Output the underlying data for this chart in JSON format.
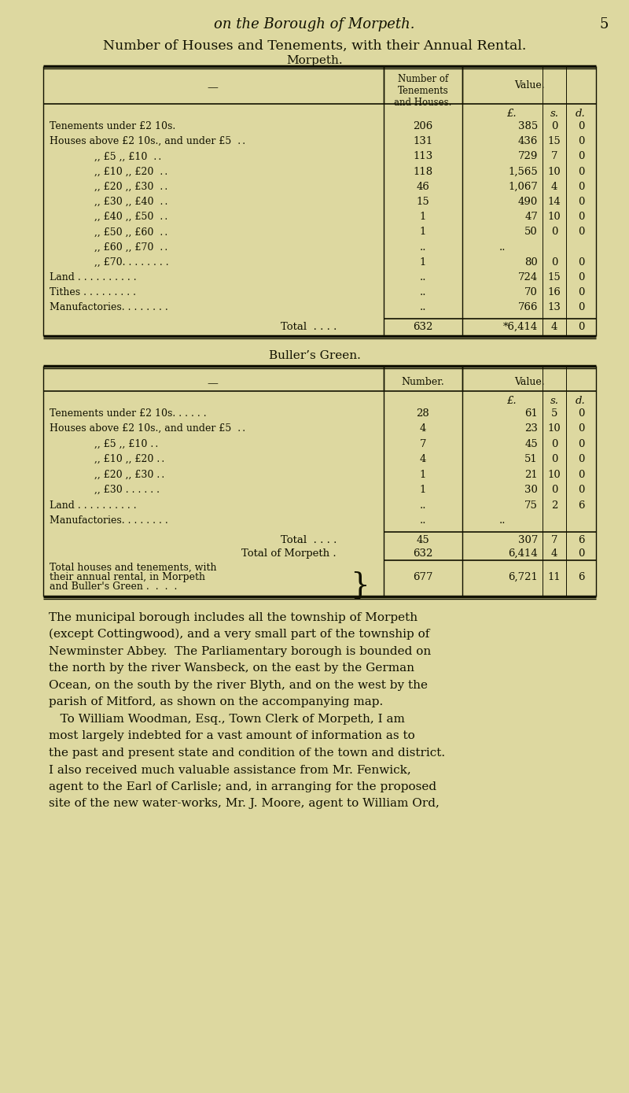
{
  "bg_color": "#ddd8a0",
  "page_title_italic": "on the Borough of Morpeth.",
  "page_number": "5",
  "main_title": "Number of Houses and Tenements, with their Annual Rental.",
  "morpeth_subtitle": "Morpeth.",
  "morpeth_col_header1": "Number of\nTenements\nand Houses.",
  "morpeth_col_header2": "Value.",
  "morpeth_rows": [
    {
      "label": "Tenements under £2 10s.",
      "indent": false,
      "number": "206",
      "pounds": "385",
      "shillings": "0",
      "pence": "0"
    },
    {
      "label": "Houses above £2 10s., and under £5  . .",
      "indent": false,
      "number": "131",
      "pounds": "436",
      "shillings": "15",
      "pence": "0"
    },
    {
      "label": ",, £5 ,, £10  . .",
      "indent": true,
      "number": "113",
      "pounds": "729",
      "shillings": "7",
      "pence": "0"
    },
    {
      "label": ",, £10 ,, £20  . .",
      "indent": true,
      "number": "118",
      "pounds": "1,565",
      "shillings": "10",
      "pence": "0"
    },
    {
      "label": ",, £20 ,, £30  . .",
      "indent": true,
      "number": "46",
      "pounds": "1,067",
      "shillings": "4",
      "pence": "0"
    },
    {
      "label": ",, £30 ,, £40  . .",
      "indent": true,
      "number": "15",
      "pounds": "490",
      "shillings": "14",
      "pence": "0"
    },
    {
      "label": ",, £40 ,, £50  . .",
      "indent": true,
      "number": "1",
      "pounds": "47",
      "shillings": "10",
      "pence": "0"
    },
    {
      "label": ",, £50 ,, £60  . .",
      "indent": true,
      "number": "1",
      "pounds": "50",
      "shillings": "0",
      "pence": "0"
    },
    {
      "label": ",, £60 ,, £70  . .",
      "indent": true,
      "number": "..",
      "pounds": "..",
      "shillings": "",
      "pence": ""
    },
    {
      "label": ",, £70. . . . . . . .",
      "indent": true,
      "number": "1",
      "pounds": "80",
      "shillings": "0",
      "pence": "0"
    },
    {
      "label": "Land . . . . . . . . . .",
      "indent": false,
      "number": "..",
      "pounds": "724",
      "shillings": "15",
      "pence": "0"
    },
    {
      "label": "Tithes . . . . . . . . .",
      "indent": false,
      "number": "..",
      "pounds": "70",
      "shillings": "16",
      "pence": "0"
    },
    {
      "label": "Manufactories. . . . . . . .",
      "indent": false,
      "number": "..",
      "pounds": "766",
      "shillings": "13",
      "pence": "0"
    }
  ],
  "morpeth_total_number": "632",
  "morpeth_total_pounds": "*6,414",
  "morpeth_total_shillings": "4",
  "morpeth_total_pence": "0",
  "bullers_subtitle": "Buller’s Green.",
  "bullers_rows": [
    {
      "label": "Tenements under £2 10s. . . . . .",
      "indent": false,
      "number": "28",
      "pounds": "61",
      "shillings": "5",
      "pence": "0"
    },
    {
      "label": "Houses above £2 10s., and under £5  . .",
      "indent": false,
      "number": "4",
      "pounds": "23",
      "shillings": "10",
      "pence": "0"
    },
    {
      "label": ",, £5 ,, £10 . .",
      "indent": true,
      "number": "7",
      "pounds": "45",
      "shillings": "0",
      "pence": "0"
    },
    {
      "label": ",, £10 ,, £20 . .",
      "indent": true,
      "number": "4",
      "pounds": "51",
      "shillings": "0",
      "pence": "0"
    },
    {
      "label": ",, £20 ,, £30 . .",
      "indent": true,
      "number": "1",
      "pounds": "21",
      "shillings": "10",
      "pence": "0"
    },
    {
      "label": ",, £30 . . . . . .",
      "indent": true,
      "number": "1",
      "pounds": "30",
      "shillings": "0",
      "pence": "0"
    },
    {
      "label": "Land . . . . . . . . . .",
      "indent": false,
      "number": "..",
      "pounds": "75",
      "shillings": "2",
      "pence": "6"
    },
    {
      "label": "Manufactories. . . . . . . .",
      "indent": false,
      "number": "..",
      "pounds": "..",
      "shillings": "",
      "pence": ""
    }
  ],
  "bullers_total_number": "45",
  "bullers_total_pounds": "307",
  "bullers_total_shillings": "7",
  "bullers_total_pence": "6",
  "morpeth_total2_number": "632",
  "morpeth_total2_pounds": "6,414",
  "morpeth_total2_shillings": "4",
  "morpeth_total2_pence": "0",
  "combined_number": "677",
  "combined_pounds": "6,721",
  "combined_shillings": "11",
  "combined_pence": "6",
  "body_text_lines": [
    "The municipal borough includes all the township of Morpeth",
    "(except Cottingwood), and a very small part of the township of",
    "Newminster Abbey.  The Parliamentary borough is bounded on",
    "the north by the river Wansbeck, on the east by the German",
    "Ocean, on the south by the river Blyth, and on the west by the",
    "parish of Mitford, as shown on the accompanying map.",
    "   To William Woodman, Esq., Town Clerk of Morpeth, I am",
    "most largely indebted for a vast amount of information as to",
    "the past and present state and condition of the town and district.",
    "I also received much valuable assistance from Mr. Fenwick,",
    "agent to the Earl of Carlisle; and, in arranging for the proposed",
    "site of the new water-works, Mr. J. Moore, agent to William Ord,"
  ]
}
